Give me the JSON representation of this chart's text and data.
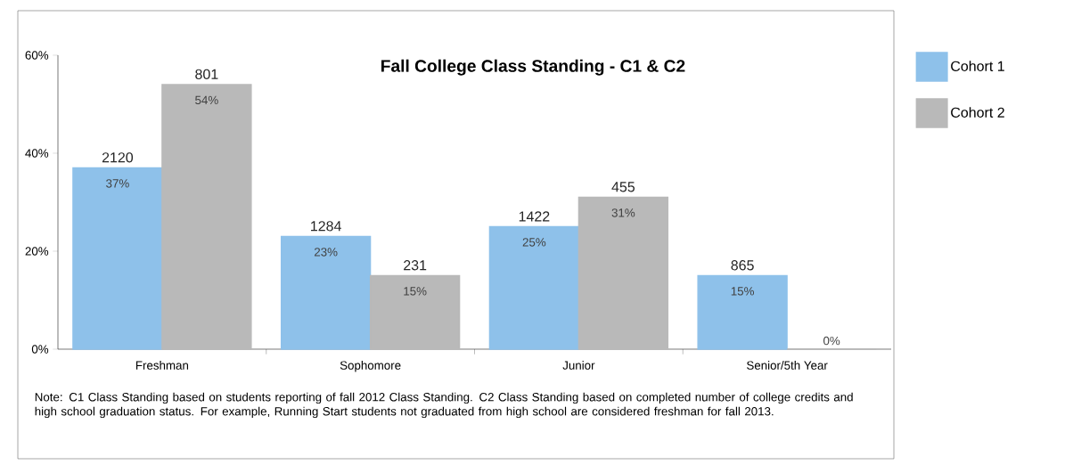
{
  "chart_data": {
    "type": "bar",
    "title": "Fall College Class Standing - C1 & C2",
    "categories": [
      "Freshman",
      "Sophomore",
      "Junior",
      "Senior/5th Year"
    ],
    "series": [
      {
        "name": "Cohort 1",
        "color": "#8ec1ea",
        "values": [
          37,
          23,
          25,
          15
        ],
        "value_labels": [
          "37%",
          "23%",
          "25%",
          "15%"
        ]
      },
      {
        "name": "Cohort 2",
        "color": "#b9b9b9",
        "values": [
          54,
          15,
          31,
          0
        ],
        "value_labels": [
          "54%",
          "15%",
          "31%",
          "0%"
        ]
      }
    ],
    "ylim": [
      0,
      60
    ],
    "yticks": [
      {
        "value": 0,
        "label": "0%"
      },
      {
        "value": 20,
        "label": "20%"
      },
      {
        "value": 40,
        "label": "40%"
      },
      {
        "value": 60,
        "label": "60%"
      }
    ],
    "annotations": [
      {
        "text": "2120",
        "x": "Freshman",
        "y": 37
      },
      {
        "text": "801",
        "x": "Freshman",
        "y": 54
      },
      {
        "text": "1284",
        "x": "Sophomore",
        "y": 23
      },
      {
        "text": "231",
        "x": "Sophomore",
        "y": 15
      },
      {
        "text": "1422",
        "x": "Junior",
        "y": 25
      },
      {
        "text": "455",
        "x": "Junior",
        "y": 31
      },
      {
        "text": "865",
        "x": "Senior/5th Year",
        "y": 15
      },
      "Note: C1 Class Standing based on students reporting of fall 2012 Class Standing.  C2 Class Standing based on completed number of college credits and high school graduation status.  For example, Running Start students not graduated from high school are considered freshman for fall 2013."
    ],
    "legend": "top right",
    "grid": false
  }
}
